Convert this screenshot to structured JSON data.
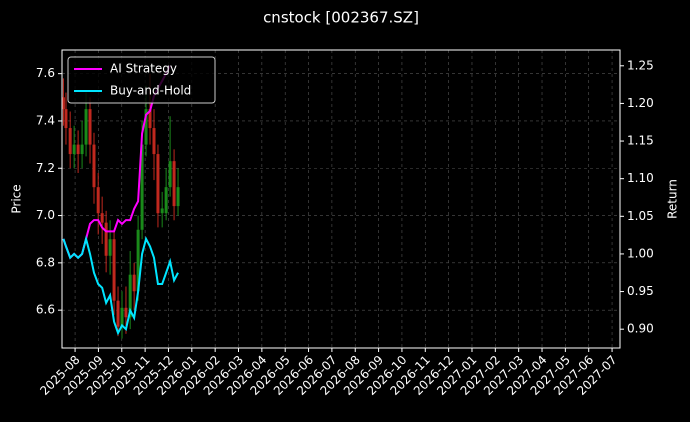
{
  "chart_data": {
    "type": "candlestick",
    "title": "cnstock [002367.SZ]",
    "ylabel": "Price",
    "y2label": "Return",
    "grid": true,
    "legend": "upper left",
    "up_color": "#1a8a1a",
    "down_color": "#c0281e",
    "xlim": [
      -0.56,
      23.34
    ],
    "xticks": [
      {
        "value": 0,
        "label": "2025-08"
      },
      {
        "value": 1,
        "label": "2025-09"
      },
      {
        "value": 2,
        "label": "2025-10"
      },
      {
        "value": 3,
        "label": "2025-11"
      },
      {
        "value": 4,
        "label": "2025-12"
      },
      {
        "value": 5,
        "label": "2026-01"
      },
      {
        "value": 6,
        "label": "2026-02"
      },
      {
        "value": 7,
        "label": "2026-03"
      },
      {
        "value": 8,
        "label": "2026-04"
      },
      {
        "value": 9,
        "label": "2026-05"
      },
      {
        "value": 10,
        "label": "2026-06"
      },
      {
        "value": 11,
        "label": "2026-07"
      },
      {
        "value": 12,
        "label": "2026-08"
      },
      {
        "value": 13,
        "label": "2026-09"
      },
      {
        "value": 14,
        "label": "2026-10"
      },
      {
        "value": 15,
        "label": "2026-11"
      },
      {
        "value": 16,
        "label": "2026-12"
      },
      {
        "value": 17,
        "label": "2027-01"
      },
      {
        "value": 18,
        "label": "2027-02"
      },
      {
        "value": 19,
        "label": "2027-03"
      },
      {
        "value": 20,
        "label": "2027-04"
      },
      {
        "value": 21,
        "label": "2027-05"
      },
      {
        "value": 22,
        "label": "2027-06"
      },
      {
        "value": 23,
        "label": "2027-07"
      }
    ],
    "ylim": [
      6.44,
      7.7
    ],
    "yticks": [
      6.6,
      6.8,
      {
        "value": 7,
        "label": "7.0"
      },
      7.2,
      7.4,
      7.6
    ],
    "y2lim": [
      0.875,
      1.271
    ],
    "y2ticks": [
      {
        "value": 0.9,
        "label": "0.90"
      },
      0.95,
      {
        "value": 1,
        "label": "1.00"
      },
      1.05,
      {
        "value": 1.1,
        "label": "1.10"
      },
      1.15,
      {
        "value": 1.2,
        "label": "1.20"
      },
      1.25
    ],
    "x": [
      -0.5,
      -0.39,
      -0.21,
      -0.04,
      0.13,
      0.3,
      0.47,
      0.64,
      0.81,
      0.99,
      1.16,
      1.33,
      1.5,
      1.67,
      1.84,
      2.01,
      2.18,
      2.36,
      2.53,
      2.7,
      2.87,
      3.04,
      3.21,
      3.38,
      3.55,
      3.73,
      3.9,
      4.07,
      4.24,
      4.41
    ],
    "open": [
      7.5,
      7.45,
      7.37,
      7.26,
      7.3,
      7.26,
      7.3,
      7.45,
      7.3,
      7.12,
      7.01,
      6.97,
      6.83,
      6.9,
      6.64,
      6.53,
      6.61,
      6.57,
      6.75,
      6.68,
      6.94,
      7.3,
      7.45,
      7.37,
      7.26,
      7.01,
      7.01,
      7.12,
      7.23,
      7.04
    ],
    "high": [
      7.58,
      7.52,
      7.44,
      7.38,
      7.36,
      7.4,
      7.52,
      7.5,
      7.35,
      7.18,
      7.08,
      7.02,
      6.98,
      6.94,
      6.7,
      6.68,
      6.7,
      6.85,
      6.8,
      7.0,
      7.4,
      7.55,
      7.6,
      7.45,
      7.3,
      7.1,
      7.2,
      7.42,
      7.28,
      7.2
    ],
    "low": [
      7.38,
      7.3,
      7.2,
      7.2,
      7.18,
      7.2,
      7.25,
      7.22,
      7.05,
      6.92,
      6.88,
      6.76,
      6.75,
      6.58,
      6.49,
      6.48,
      6.5,
      6.52,
      6.6,
      6.64,
      6.9,
      7.25,
      7.3,
      7.15,
      6.95,
      6.95,
      6.98,
      7.08,
      6.98,
      7.0
    ],
    "close": [
      7.45,
      7.37,
      7.26,
      7.3,
      7.26,
      7.3,
      7.45,
      7.3,
      7.12,
      7.01,
      6.97,
      6.83,
      6.9,
      6.64,
      6.53,
      6.61,
      6.57,
      6.75,
      6.68,
      6.94,
      7.3,
      7.45,
      7.37,
      7.26,
      7.01,
      7.03,
      7.12,
      7.23,
      7.04,
      7.12
    ],
    "series": [
      {
        "name": "AI Strategy",
        "color": "#ff00ff",
        "axis": "y2",
        "values": [
          1.02,
          1.01,
          0.995,
          1.0,
          0.995,
          1.0,
          1.02,
          1.04,
          1.045,
          1.045,
          1.035,
          1.03,
          1.03,
          1.03,
          1.045,
          1.04,
          1.045,
          1.045,
          1.06,
          1.07,
          1.16,
          1.185,
          1.19,
          1.21,
          1.22,
          1.23,
          1.24,
          1.25,
          null,
          null
        ]
      },
      {
        "name": "Buy-and-Hold",
        "color": "#00e5ff",
        "axis": "y2",
        "values": [
          1.02,
          1.01,
          0.995,
          1.0,
          0.995,
          1.0,
          1.02,
          1.0,
          0.975,
          0.96,
          0.955,
          0.935,
          0.945,
          0.91,
          0.895,
          0.905,
          0.9,
          0.925,
          0.915,
          0.95,
          1.0,
          1.02,
          1.01,
          0.995,
          0.96,
          0.96,
          0.975,
          0.99,
          0.965,
          0.975
        ]
      }
    ]
  }
}
